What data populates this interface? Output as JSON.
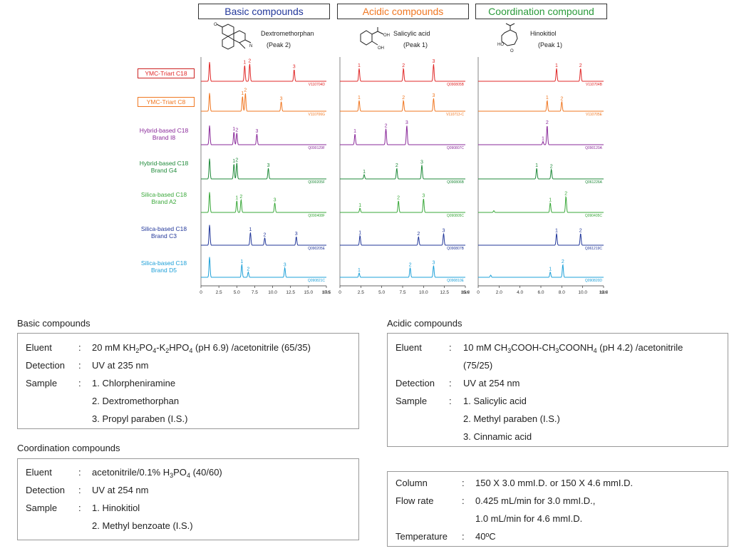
{
  "panels": [
    {
      "title": "Basic compounds",
      "color": "#22379a",
      "compound": "Dextromethorphan",
      "peak": "(Peak 2)",
      "codes": [
        "V110704D",
        "V110706G",
        "Q090129F",
        "Q090205F",
        "Q090408F",
        "Q090205E",
        "Q090821C"
      ]
    },
    {
      "title": "Acidic compounds",
      "color": "#f07722",
      "compound": "Salicylic acid",
      "peak": "(Peak 1)",
      "codes": [
        "Q090805B",
        "V110713-C",
        "Q090807C",
        "Q090806B",
        "Q090805C",
        "Q090807B",
        "Q090810E"
      ]
    },
    {
      "title": "Coordination compound",
      "color": "#2a9a3a",
      "compound": "Hinokitiol",
      "peak": "(Peak 1)",
      "codes": [
        "V110704B",
        "V110705E",
        "Q090120A",
        "Q061226A",
        "Q090405C",
        "Q061219C",
        "Q090820D"
      ]
    }
  ],
  "rows": [
    {
      "label1": "YMC-Triart C18",
      "label2": "",
      "color": "#e02828"
    },
    {
      "label1": "YMC-Triart C8",
      "label2": "",
      "color": "#f07722"
    },
    {
      "label1": "Hybrid-based C18",
      "label2": "Brand I8",
      "color": "#8a2a9a"
    },
    {
      "label1": "Hybrid-based C18",
      "label2": "Brand G4",
      "color": "#1f8a3a"
    },
    {
      "label1": "Silica-based C18",
      "label2": "Brand A2",
      "color": "#3aa83a"
    },
    {
      "label1": "Silica-based C18",
      "label2": "Brand C3",
      "color": "#22379a"
    },
    {
      "label1": "Silica-based C18",
      "label2": "Brand D5",
      "color": "#1ea0d8"
    }
  ],
  "chart_data": [
    {
      "type": "line",
      "title": "Basic compounds",
      "xlabel": "min",
      "xlim": [
        0,
        17.5
      ],
      "xticks": [
        "0",
        "2.5",
        "5.0",
        "7.5",
        "10.0",
        "12.5",
        "15.0",
        "17.5"
      ],
      "x_unit_label": "min",
      "series": [
        {
          "name": "YMC-Triart C18",
          "peaks": [
            {
              "t": 1.2,
              "h": 0.9,
              "label": ""
            },
            {
              "t": 6.1,
              "h": 0.75,
              "label": "1"
            },
            {
              "t": 6.8,
              "h": 0.82,
              "label": "2"
            },
            {
              "t": 13.0,
              "h": 0.55,
              "label": "3"
            }
          ]
        },
        {
          "name": "YMC-Triart C8",
          "peaks": [
            {
              "t": 1.2,
              "h": 0.85,
              "label": ""
            },
            {
              "t": 5.8,
              "h": 0.7,
              "label": "1"
            },
            {
              "t": 6.2,
              "h": 0.85,
              "label": "2"
            },
            {
              "t": 11.2,
              "h": 0.45,
              "label": "3"
            }
          ]
        },
        {
          "name": "Hybrid-based C18 Brand I8",
          "peaks": [
            {
              "t": 1.2,
              "h": 0.9,
              "label": ""
            },
            {
              "t": 4.6,
              "h": 0.6,
              "label": "1"
            },
            {
              "t": 5.0,
              "h": 0.55,
              "label": "2"
            },
            {
              "t": 7.8,
              "h": 0.5,
              "label": "3"
            }
          ]
        },
        {
          "name": "Hybrid-based C18 Brand G4",
          "peaks": [
            {
              "t": 1.2,
              "h": 0.95,
              "label": ""
            },
            {
              "t": 4.6,
              "h": 0.7,
              "label": "1"
            },
            {
              "t": 5.0,
              "h": 0.75,
              "label": "2"
            },
            {
              "t": 9.4,
              "h": 0.5,
              "label": "3"
            }
          ]
        },
        {
          "name": "Silica-based C18 Brand A2",
          "peaks": [
            {
              "t": 1.2,
              "h": 0.95,
              "label": ""
            },
            {
              "t": 5.0,
              "h": 0.55,
              "label": "1"
            },
            {
              "t": 5.6,
              "h": 0.6,
              "label": "2"
            },
            {
              "t": 10.3,
              "h": 0.45,
              "label": "3"
            }
          ]
        },
        {
          "name": "Silica-based C18 Brand C3",
          "peaks": [
            {
              "t": 1.2,
              "h": 0.95,
              "label": ""
            },
            {
              "t": 6.9,
              "h": 0.6,
              "label": "1"
            },
            {
              "t": 8.9,
              "h": 0.35,
              "label": "2"
            },
            {
              "t": 13.3,
              "h": 0.4,
              "label": "3"
            }
          ]
        },
        {
          "name": "Silica-based C18 Brand D5",
          "peaks": [
            {
              "t": 1.2,
              "h": 0.95,
              "label": ""
            },
            {
              "t": 5.7,
              "h": 0.6,
              "label": "1"
            },
            {
              "t": 6.6,
              "h": 0.25,
              "label": "2"
            },
            {
              "t": 11.7,
              "h": 0.45,
              "label": "3"
            }
          ]
        }
      ]
    },
    {
      "type": "line",
      "title": "Acidic compounds",
      "xlabel": "min",
      "xlim": [
        0,
        15.0
      ],
      "xticks": [
        "0",
        "2.5",
        "5.0",
        "7.5",
        "10.0",
        "12.5",
        "15.0"
      ],
      "x_unit_label": "min",
      "series": [
        {
          "name": "YMC-Triart C18",
          "peaks": [
            {
              "t": 2.3,
              "h": 0.6,
              "label": "1"
            },
            {
              "t": 7.6,
              "h": 0.6,
              "label": "2"
            },
            {
              "t": 11.2,
              "h": 0.8,
              "label": "3"
            }
          ]
        },
        {
          "name": "YMC-Triart C8",
          "peaks": [
            {
              "t": 2.3,
              "h": 0.5,
              "label": "1"
            },
            {
              "t": 7.6,
              "h": 0.5,
              "label": "2"
            },
            {
              "t": 11.2,
              "h": 0.6,
              "label": "3"
            }
          ]
        },
        {
          "name": "Hybrid-based C18 Brand I8",
          "peaks": [
            {
              "t": 1.8,
              "h": 0.5,
              "label": "1"
            },
            {
              "t": 5.5,
              "h": 0.75,
              "label": "2"
            },
            {
              "t": 8.0,
              "h": 0.9,
              "label": "3"
            }
          ]
        },
        {
          "name": "Hybrid-based C18 Brand G4",
          "peaks": [
            {
              "t": 2.9,
              "h": 0.2,
              "label": "1"
            },
            {
              "t": 6.8,
              "h": 0.5,
              "label": "2"
            },
            {
              "t": 9.8,
              "h": 0.65,
              "label": "3"
            }
          ]
        },
        {
          "name": "Silica-based C18 Brand A2",
          "peaks": [
            {
              "t": 2.4,
              "h": 0.2,
              "label": "1"
            },
            {
              "t": 7.0,
              "h": 0.55,
              "label": "2"
            },
            {
              "t": 10.0,
              "h": 0.65,
              "label": "3"
            }
          ]
        },
        {
          "name": "Silica-based C18 Brand C3",
          "peaks": [
            {
              "t": 2.4,
              "h": 0.45,
              "label": "1"
            },
            {
              "t": 9.4,
              "h": 0.4,
              "label": "2"
            },
            {
              "t": 12.4,
              "h": 0.55,
              "label": "3"
            }
          ]
        },
        {
          "name": "Silica-based C18 Brand D5",
          "peaks": [
            {
              "t": 2.3,
              "h": 0.2,
              "label": "1"
            },
            {
              "t": 8.4,
              "h": 0.45,
              "label": "2"
            },
            {
              "t": 11.2,
              "h": 0.55,
              "label": "3"
            }
          ]
        }
      ]
    },
    {
      "type": "line",
      "title": "Coordination compound",
      "xlabel": "min",
      "xlim": [
        0,
        12.0
      ],
      "xticks": [
        "0",
        "2.0",
        "4.0",
        "6.0",
        "8.0",
        "10.0",
        "12.0"
      ],
      "x_unit_label": "min",
      "series": [
        {
          "name": "YMC-Triart C18",
          "peaks": [
            {
              "t": 7.5,
              "h": 0.6,
              "label": "1"
            },
            {
              "t": 9.8,
              "h": 0.6,
              "label": "2"
            }
          ]
        },
        {
          "name": "YMC-Triart C8",
          "peaks": [
            {
              "t": 6.6,
              "h": 0.5,
              "label": "1"
            },
            {
              "t": 8.0,
              "h": 0.45,
              "label": "2"
            }
          ]
        },
        {
          "name": "Hybrid-based C18 Brand I8",
          "peaks": [
            {
              "t": 6.2,
              "h": 0.15,
              "label": "1"
            },
            {
              "t": 6.6,
              "h": 0.9,
              "label": "2"
            }
          ]
        },
        {
          "name": "Hybrid-based C18 Brand G4",
          "peaks": [
            {
              "t": 5.6,
              "h": 0.5,
              "label": "1"
            },
            {
              "t": 7.0,
              "h": 0.45,
              "label": "2"
            }
          ]
        },
        {
          "name": "Silica-based C18 Brand A2",
          "peaks": [
            {
              "t": 1.5,
              "h": 0.08,
              "label": ""
            },
            {
              "t": 6.9,
              "h": 0.45,
              "label": "1"
            },
            {
              "t": 8.4,
              "h": 0.75,
              "label": "2"
            }
          ]
        },
        {
          "name": "Silica-based C18 Brand C3",
          "peaks": [
            {
              "t": 7.5,
              "h": 0.55,
              "label": "1"
            },
            {
              "t": 9.8,
              "h": 0.55,
              "label": "2"
            }
          ]
        },
        {
          "name": "Silica-based C18 Brand D5",
          "peaks": [
            {
              "t": 1.2,
              "h": 0.1,
              "label": ""
            },
            {
              "t": 6.9,
              "h": 0.25,
              "label": "1"
            },
            {
              "t": 8.1,
              "h": 0.6,
              "label": "2"
            }
          ]
        }
      ]
    }
  ],
  "conditions": {
    "basic": {
      "title": "Basic compounds",
      "eluent_key": "Eluent",
      "eluent": "20 mM KH2PO4-K2HPO4 (pH 6.9) /acetonitrile (65/35)",
      "detection_key": "Detection",
      "detection": "UV at 235 nm",
      "sample_key": "Sample",
      "samples": [
        "1. Chlorpheniramine",
        "2. Dextromethorphan",
        "3. Propyl paraben (I.S.)"
      ]
    },
    "acidic": {
      "title": "Acidic compounds",
      "eluent_key": "Eluent",
      "eluent_line1": "10 mM CH3COOH-CH3COONH4 (pH 4.2) /acetonitrile",
      "eluent_line2": "(75/25)",
      "detection_key": "Detection",
      "detection": "UV at 254 nm",
      "sample_key": "Sample",
      "samples": [
        "1. Salicylic acid",
        "2. Methyl paraben (I.S.)",
        "3. Cinnamic acid"
      ]
    },
    "coordination": {
      "title": "Coordination compounds",
      "eluent_key": "Eluent",
      "eluent": "acetonitrile/0.1% H3PO4 (40/60)",
      "detection_key": "Detection",
      "detection": "UV at 254 nm",
      "sample_key": "Sample",
      "samples": [
        "1. Hinokitiol",
        "2. Methyl benzoate (I.S.)"
      ]
    },
    "column": {
      "column_key": "Column",
      "column": "150 X 3.0 mmI.D. or 150 X 4.6 mmI.D.",
      "flow_key": "Flow rate",
      "flow_line1": "0.425 mL/min for 3.0 mmI.D.,",
      "flow_line2": "1.0 mL/min for 4.6 mmI.D.",
      "temp_key": "Temperature",
      "temp": "40ºC"
    },
    "colon": ":"
  }
}
